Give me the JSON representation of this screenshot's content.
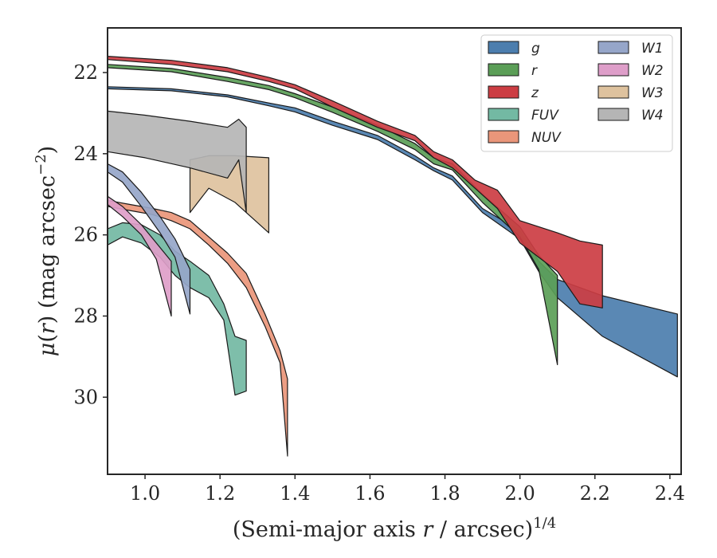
{
  "chart_data": {
    "type": "area",
    "xlabel_main": "(Semi-major axis ",
    "xlabel_var": "r",
    "xlabel_sep": " / arcsec)",
    "xlabel_exp": "1/4",
    "ylabel_mu": "μ",
    "ylabel_open": "(",
    "ylabel_var": "r",
    "ylabel_close": ")",
    "ylabel_unit": " (mag arcsec",
    "ylabel_exp": "−2",
    "ylabel_end": ")",
    "xlim": [
      0.9,
      2.43
    ],
    "ylim": [
      31.9,
      20.9
    ],
    "y_inverted": true,
    "xticks": [
      1.0,
      1.2,
      1.4,
      1.6,
      1.8,
      2.0,
      2.2,
      2.4
    ],
    "xtick_labels": [
      "1.0",
      "1.2",
      "1.4",
      "1.6",
      "1.8",
      "2.0",
      "2.2",
      "2.4"
    ],
    "yticks": [
      22,
      24,
      26,
      28,
      30
    ],
    "ytick_labels": [
      "22",
      "24",
      "26",
      "28",
      "30"
    ],
    "legend_position": "upper right",
    "legend_columns": 2,
    "series": [
      {
        "name": "g",
        "color": "#4c7eae",
        "x": [
          0.9,
          1.07,
          1.22,
          1.33,
          1.4,
          1.5,
          1.62,
          1.72,
          1.77,
          1.82,
          1.9,
          2.0,
          2.05,
          2.1,
          2.22,
          2.42
        ],
        "y_upper": [
          22.35,
          22.4,
          22.55,
          22.75,
          22.87,
          23.2,
          23.55,
          24.05,
          24.35,
          24.55,
          25.35,
          25.9,
          26.65,
          27.1,
          27.5,
          27.95
        ],
        "y_lower": [
          22.4,
          22.45,
          22.6,
          22.82,
          22.97,
          23.3,
          23.65,
          24.15,
          24.42,
          24.65,
          25.45,
          26.1,
          26.9,
          27.55,
          28.5,
          29.5
        ]
      },
      {
        "name": "r",
        "color": "#5b9e57",
        "x": [
          0.9,
          1.07,
          1.22,
          1.33,
          1.4,
          1.5,
          1.62,
          1.72,
          1.77,
          1.82,
          1.9,
          2.0,
          2.05,
          2.1
        ],
        "y_upper": [
          21.8,
          21.9,
          22.12,
          22.32,
          22.52,
          22.85,
          23.3,
          23.75,
          24.1,
          24.25,
          25.0,
          25.8,
          26.5,
          27.0
        ],
        "y_lower": [
          21.88,
          21.98,
          22.22,
          22.42,
          22.62,
          22.98,
          23.45,
          23.9,
          24.25,
          24.4,
          25.2,
          26.05,
          26.85,
          29.2
        ]
      },
      {
        "name": "z",
        "color": "#cc3d43",
        "x": [
          0.9,
          1.07,
          1.22,
          1.33,
          1.4,
          1.5,
          1.62,
          1.72,
          1.77,
          1.82,
          1.88,
          1.94,
          2.0,
          2.1,
          2.16,
          2.22
        ],
        "y_upper": [
          21.6,
          21.7,
          21.88,
          22.12,
          22.3,
          22.7,
          23.2,
          23.55,
          23.95,
          24.15,
          24.65,
          24.9,
          25.65,
          25.95,
          26.15,
          26.25
        ],
        "y_lower": [
          21.68,
          21.8,
          21.98,
          22.22,
          22.4,
          22.85,
          23.35,
          23.68,
          24.1,
          24.35,
          24.85,
          25.35,
          26.2,
          26.9,
          27.7,
          27.8
        ]
      },
      {
        "name": "FUV",
        "color": "#73b9a3",
        "x": [
          0.9,
          0.94,
          0.99,
          1.04,
          1.08,
          1.12,
          1.17,
          1.21,
          1.24,
          1.27
        ],
        "y_upper": [
          25.85,
          25.7,
          25.75,
          26.0,
          26.4,
          26.65,
          27.0,
          27.7,
          28.5,
          28.6
        ],
        "y_lower": [
          26.25,
          26.05,
          26.2,
          26.55,
          27.0,
          27.3,
          27.55,
          28.1,
          29.95,
          29.85
        ]
      },
      {
        "name": "NUV",
        "color": "#ea967a",
        "x": [
          0.9,
          0.96,
          1.02,
          1.07,
          1.12,
          1.17,
          1.22,
          1.27,
          1.32,
          1.36,
          1.38
        ],
        "y_upper": [
          25.15,
          25.25,
          25.35,
          25.45,
          25.65,
          26.05,
          26.45,
          26.95,
          27.95,
          28.85,
          29.55
        ],
        "y_lower": [
          25.3,
          25.4,
          25.5,
          25.65,
          25.85,
          26.25,
          26.7,
          27.3,
          28.25,
          29.15,
          31.45
        ]
      },
      {
        "name": "W1",
        "color": "#96a6c9",
        "x": [
          0.9,
          0.94,
          0.99,
          1.04,
          1.08,
          1.12
        ],
        "y_upper": [
          24.25,
          24.45,
          24.95,
          25.55,
          26.1,
          26.85
        ],
        "y_lower": [
          24.45,
          24.7,
          25.3,
          25.95,
          26.55,
          27.95
        ]
      },
      {
        "name": "W2",
        "color": "#de9ec9",
        "x": [
          0.9,
          0.94,
          0.99,
          1.03,
          1.07
        ],
        "y_upper": [
          25.05,
          25.3,
          25.75,
          26.2,
          26.65
        ],
        "y_lower": [
          25.25,
          25.55,
          26.0,
          26.6,
          28.0
        ]
      },
      {
        "name": "W3",
        "color": "#deC29e",
        "x": [
          1.12,
          1.17,
          1.24,
          1.33
        ],
        "y_upper": [
          24.15,
          24.05,
          24.05,
          24.1
        ],
        "y_lower": [
          25.45,
          24.85,
          25.2,
          25.95
        ]
      },
      {
        "name": "W4",
        "color": "#b5b5b5",
        "x": [
          0.9,
          1.0,
          1.12,
          1.22,
          1.25,
          1.27
        ],
        "y_upper": [
          22.95,
          23.05,
          23.2,
          23.35,
          23.15,
          23.35
        ],
        "y_lower": [
          23.95,
          24.1,
          24.35,
          24.6,
          24.15,
          25.45
        ]
      }
    ]
  }
}
